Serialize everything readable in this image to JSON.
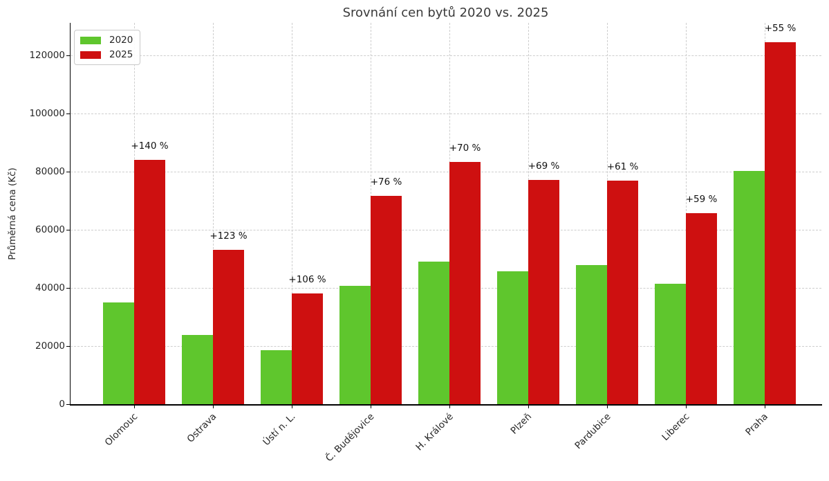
{
  "chart_data": {
    "type": "bar",
    "title": "Srovnání cen bytů 2020 vs. 2025",
    "ylabel": "Průměrná cena (Kč)",
    "xlabel": "",
    "categories": [
      "Olomouc",
      "Ostrava",
      "Ústí n. L.",
      "Č. Budějovice",
      "H. Králové",
      "Plzeň",
      "Pardubice",
      "Liberec",
      "Praha"
    ],
    "series": [
      {
        "name": "2020",
        "color": "#5FC62D",
        "values": [
          35000,
          23800,
          18500,
          40800,
          49000,
          45700,
          47800,
          41400,
          80300
        ]
      },
      {
        "name": "2025",
        "color": "#CE1010",
        "values": [
          84000,
          53000,
          38100,
          71700,
          83400,
          77200,
          77000,
          65800,
          124500
        ]
      }
    ],
    "annotations": [
      "+140 %",
      "+123 %",
      "+106 %",
      "+76 %",
      "+70 %",
      "+69 %",
      "+61 %",
      "+59 %",
      "+55 %"
    ],
    "yticks": [
      0,
      20000,
      40000,
      60000,
      80000,
      100000,
      120000
    ],
    "ylim": [
      0,
      131000
    ],
    "grid": true,
    "grid_style": "dashed",
    "legend_position": "upper left",
    "x_tick_rotation": 45
  },
  "colors": {
    "background": "#ffffff",
    "grid": "#cdcdcd",
    "spine": "#000000",
    "title_text": "#3a3a3a",
    "tick_text": "#262626",
    "annotation_text": "#111111",
    "legend_border": "#c9c9c9"
  }
}
